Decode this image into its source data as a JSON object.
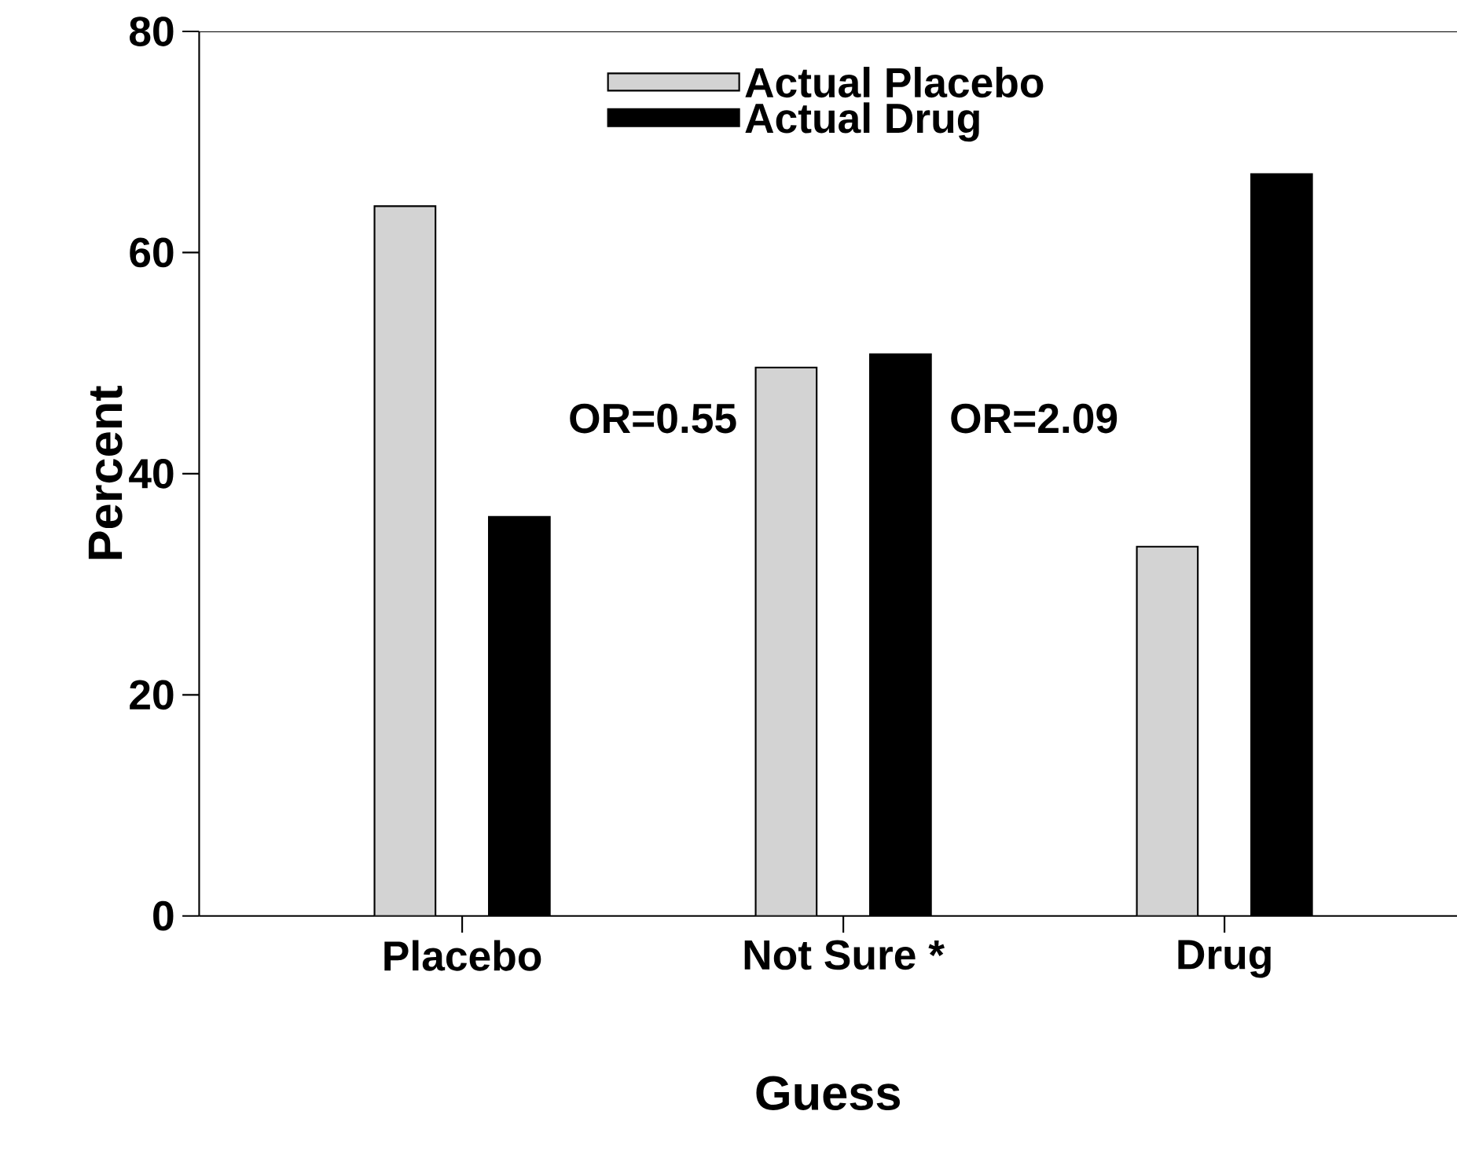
{
  "chart_data": {
    "type": "bar",
    "xlabel": "Guess",
    "ylabel": "Percent",
    "categories": [
      "Placebo",
      "Not Sure *",
      "Drug"
    ],
    "series": [
      {
        "name": "Actual Placebo",
        "color": "#d3d3d3",
        "values": [
          64.2,
          49.6,
          33.4
        ]
      },
      {
        "name": "Actual Drug",
        "color": "#000000",
        "values": [
          36.1,
          50.8,
          67.1
        ]
      }
    ],
    "ylim": [
      0,
      80
    ],
    "yticks": [
      0,
      20,
      40,
      60,
      80
    ],
    "annotations": [
      "OR=0.55",
      "OR=2.09"
    ],
    "legend": "top",
    "grid": false
  }
}
